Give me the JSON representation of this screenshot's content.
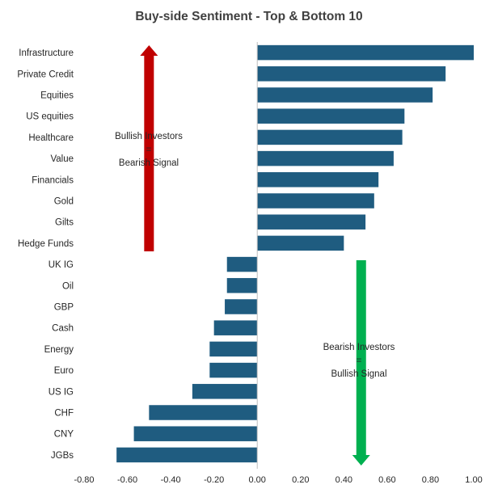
{
  "chart_data": {
    "type": "bar",
    "orientation": "horizontal",
    "title": "Buy-side Sentiment - Top & Bottom 10",
    "xlabel": "",
    "ylabel": "",
    "xlim": [
      -0.8,
      1.0
    ],
    "x_ticks": [
      "-0.80",
      "-0.60",
      "-0.40",
      "-0.20",
      "0.00",
      "0.20",
      "0.40",
      "0.60",
      "0.80",
      "1.00"
    ],
    "grid": false,
    "legend": "none",
    "bar_color": "#1f5c80",
    "categories": [
      "Infrastructure",
      "Private Credit",
      "Equities",
      "US equities",
      "Healthcare",
      "Value",
      "Financials",
      "Gold",
      "Gilts",
      "Hedge Funds",
      "UK IG",
      "Oil",
      "GBP",
      "Cash",
      "Energy",
      "Euro",
      "US IG",
      "CHF",
      "CNY",
      "JGBs"
    ],
    "values": [
      1.0,
      0.87,
      0.81,
      0.68,
      0.67,
      0.63,
      0.56,
      0.54,
      0.5,
      0.4,
      -0.14,
      -0.14,
      -0.15,
      -0.2,
      -0.22,
      -0.22,
      -0.3,
      -0.5,
      -0.57,
      -0.65
    ],
    "annotations": [
      {
        "lines": [
          "Bullish Investors",
          "=",
          "Bearish Signal"
        ],
        "arrow": "up",
        "arrow_color": "#c00000",
        "x": -0.5
      },
      {
        "lines": [
          "Bearish Investors",
          "=",
          "Bullish Signal"
        ],
        "arrow": "down",
        "arrow_color": "#00b050",
        "x": 0.48
      }
    ]
  }
}
